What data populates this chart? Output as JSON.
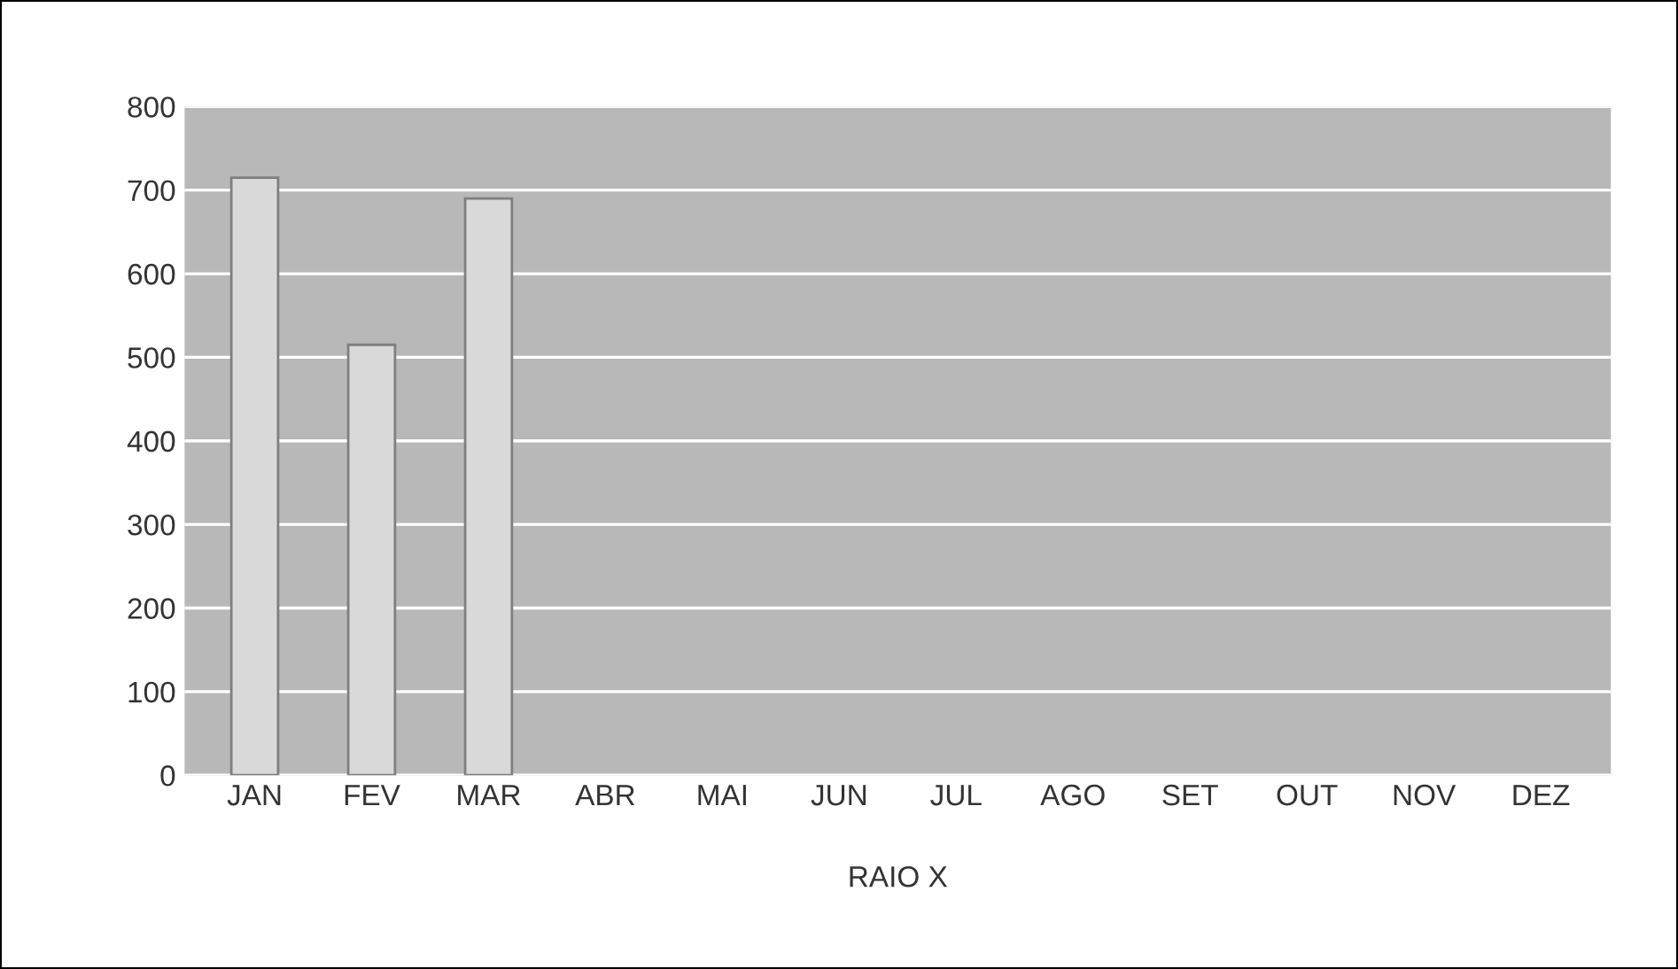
{
  "chart_data": {
    "type": "bar",
    "xlabel": "RAIO X",
    "categories": [
      "JAN",
      "FEV",
      "MAR",
      "ABR",
      "MAI",
      "JUN",
      "JUL",
      "AGO",
      "SET",
      "OUT",
      "NOV",
      "DEZ"
    ],
    "values": [
      715,
      515,
      690,
      null,
      null,
      null,
      null,
      null,
      null,
      null,
      null,
      null
    ],
    "color": "#d9d9d9",
    "ylim": [
      0,
      800
    ],
    "yticks": [
      0,
      100,
      200,
      300,
      400,
      500,
      600,
      700,
      800
    ],
    "grid": "y",
    "legend": false
  }
}
